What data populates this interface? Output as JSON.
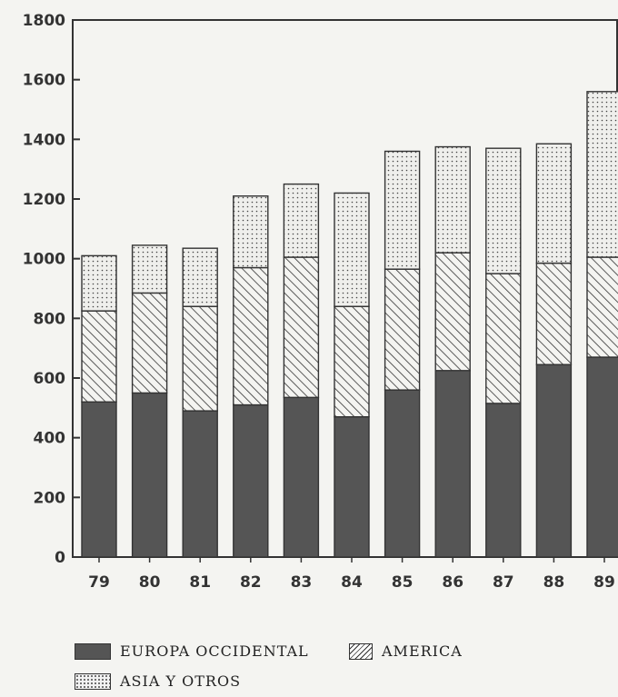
{
  "chart_data": {
    "type": "bar",
    "stacked": true,
    "title": "",
    "xlabel": "",
    "ylabel": "",
    "categories": [
      "79",
      "80",
      "81",
      "82",
      "83",
      "84",
      "85",
      "86",
      "87",
      "88",
      "89"
    ],
    "ylim": [
      0,
      1800
    ],
    "yticks": [
      0,
      200,
      400,
      600,
      800,
      1000,
      1200,
      1400,
      1600,
      1800
    ],
    "grid": false,
    "legend_position": "bottom",
    "series": [
      {
        "name": "EUROPA OCCIDENTAL",
        "pattern": "solid-dark",
        "color": "#555555",
        "values": [
          520,
          550,
          490,
          510,
          535,
          470,
          560,
          625,
          515,
          645,
          670
        ]
      },
      {
        "name": "AMERICA",
        "pattern": "diagonal-hatch",
        "color": "#333333",
        "values": [
          305,
          335,
          350,
          460,
          470,
          370,
          405,
          395,
          435,
          340,
          335
        ]
      },
      {
        "name": "ASIA Y OTROS",
        "pattern": "dotted",
        "color": "#444444",
        "values": [
          185,
          160,
          195,
          240,
          245,
          380,
          395,
          355,
          420,
          400,
          555
        ]
      }
    ]
  }
}
